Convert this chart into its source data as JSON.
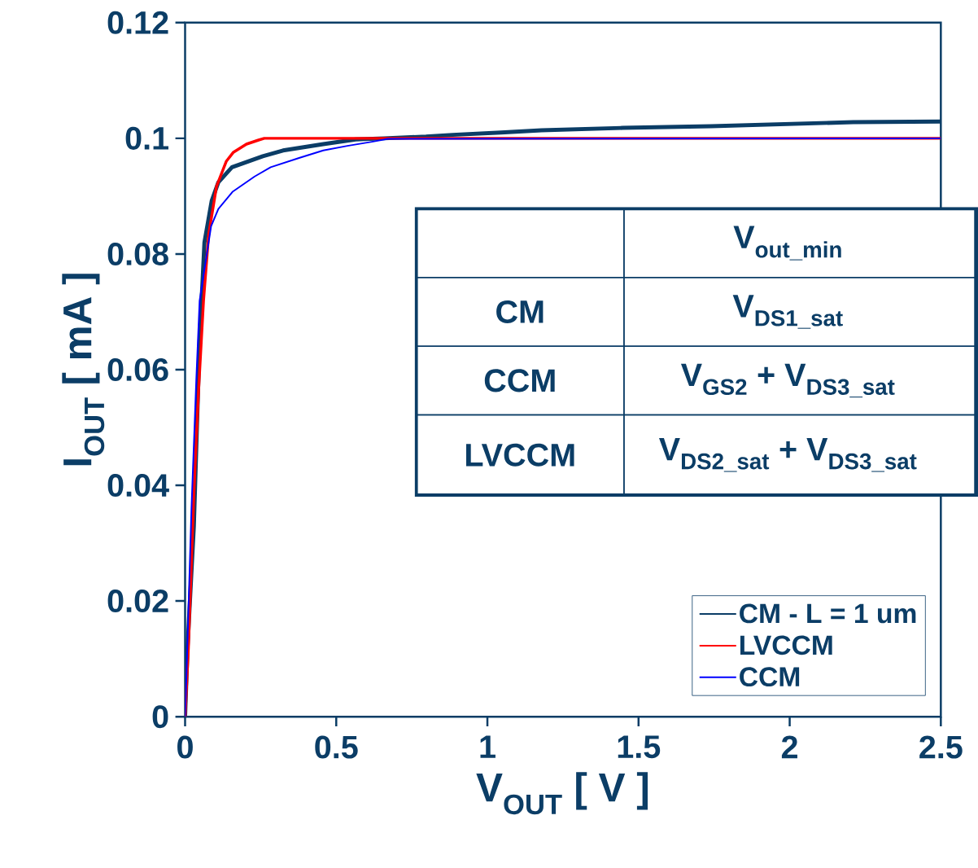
{
  "chart_data": {
    "type": "line",
    "xlabel": "V$_{OUT}$ [ V ]",
    "ylabel": "I$_{OUT}$ [ mA ]",
    "xlim": [
      0,
      2.5
    ],
    "xticks": [
      0,
      0.5,
      1,
      1.5,
      2,
      2.5
    ],
    "ylim": [
      0,
      0.12
    ],
    "yticks": [
      0,
      0.02,
      0.04,
      0.06,
      0.08,
      0.1,
      0.12
    ],
    "grid": false,
    "legend": "bottom right",
    "marker": "none",
    "line_style": "solid",
    "annotations": [
      "V$_{out_min}$",
      "CM",
      "V$_{DS1_sat}$",
      "CCM",
      "V$_{GS2}$ + V$_{DS3_sat}$",
      "LVCCM",
      "V$_{DS2_sat}$ + V$_{DS3_sat}$"
    ],
    "series": [
      {
        "name": "CM  - L = 1 um",
        "color": "#0b3d66",
        "x": [
          0,
          0.008,
          0.029,
          0.048,
          0.064,
          0.088,
          0.11,
          0.155,
          0.257,
          0.324,
          0.457,
          0.564,
          0.658,
          0.797,
          0.885,
          1.045,
          1.179,
          1.447,
          1.74,
          2.21,
          2.5
        ],
        "values": [
          0,
          0.012,
          0.033,
          0.065,
          0.082,
          0.0892,
          0.0924,
          0.095,
          0.0969,
          0.0979,
          0.099,
          0.0998,
          0.1,
          0.1003,
          0.1006,
          0.101,
          0.1014,
          0.1018,
          0.1021,
          0.1028,
          0.1029
        ]
      },
      {
        "name": "LVCCM",
        "color": "#ff0000",
        "x": [
          0,
          0.011,
          0.029,
          0.045,
          0.061,
          0.078,
          0.104,
          0.136,
          0.16,
          0.203,
          0.243,
          0.262,
          2.5
        ],
        "values": [
          0,
          0.012,
          0.0386,
          0.0568,
          0.072,
          0.0834,
          0.0917,
          0.096,
          0.0976,
          0.099,
          0.0997,
          0.1,
          0.1
        ]
      },
      {
        "name": "CCM",
        "color": "#0000ff",
        "x": [
          0,
          0.005,
          0.021,
          0.037,
          0.048,
          0.086,
          0.11,
          0.158,
          0.23,
          0.283,
          0.377,
          0.457,
          0.537,
          0.618,
          0.671,
          2.5
        ],
        "values": [
          0,
          0.0078,
          0.0358,
          0.0582,
          0.0719,
          0.0848,
          0.0878,
          0.0908,
          0.0934,
          0.095,
          0.0966,
          0.0979,
          0.0987,
          0.0994,
          0.0999,
          0.1
        ]
      }
    ]
  }
}
